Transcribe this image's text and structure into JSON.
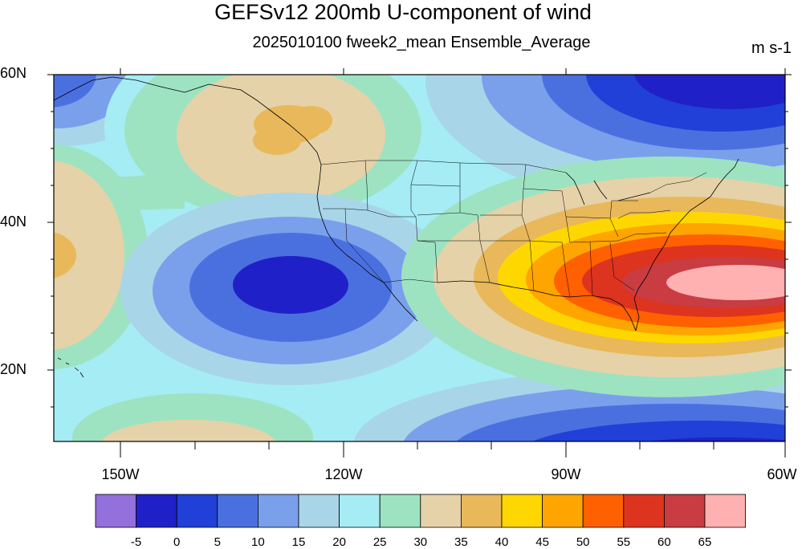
{
  "title": "GEFSv12 200mb U-component of wind",
  "subtitle": "2025010100 fweek2_mean Ensemble_Average",
  "units": "m s-1",
  "lat_labels": [
    "60N",
    "40N",
    "20N"
  ],
  "lon_labels": [
    "150W",
    "120W",
    "90W",
    "60W"
  ],
  "colorbar": {
    "colors": [
      "#9370db",
      "#2020c8",
      "#2040d8",
      "#4a70e0",
      "#7aa0ec",
      "#a8d6e8",
      "#a6ecf4",
      "#9de3c2",
      "#e6d2a8",
      "#e8b85a",
      "#ffd700",
      "#ffa500",
      "#ff6000",
      "#dd3420",
      "#c83c42",
      "#ffb0b0"
    ],
    "labels": [
      "-5",
      "0",
      "5",
      "10",
      "15",
      "20",
      "25",
      "30",
      "35",
      "40",
      "45",
      "50",
      "55",
      "60",
      "65"
    ]
  },
  "map": {
    "lon_range": [
      -160,
      -60
    ],
    "lat_range": [
      10,
      60
    ],
    "fill_levels": [
      "<-5",
      "-5–0",
      "0–5",
      "5–10",
      "10–15",
      "15–20",
      "20–25",
      "25–30",
      "30–35",
      "35–40",
      "40–45",
      "45–50",
      "50–55",
      "55–60",
      "60–65",
      ">65"
    ]
  }
}
